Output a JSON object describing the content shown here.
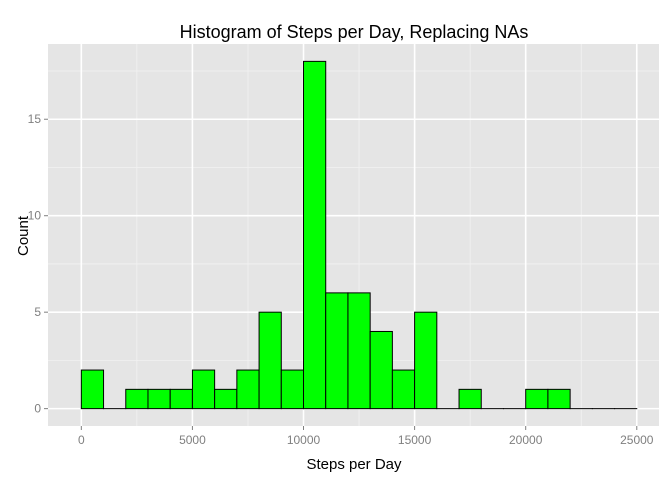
{
  "chart_data": {
    "type": "bar",
    "title": "Histogram of Steps per Day, Replacing NAs",
    "xlabel": "Steps per Day",
    "ylabel": "Count",
    "bin_width": 1000,
    "bins": [
      {
        "x_start": 0,
        "x_end": 1000,
        "count": 2
      },
      {
        "x_start": 1000,
        "x_end": 2000,
        "count": 0
      },
      {
        "x_start": 2000,
        "x_end": 3000,
        "count": 1
      },
      {
        "x_start": 3000,
        "x_end": 4000,
        "count": 1
      },
      {
        "x_start": 4000,
        "x_end": 5000,
        "count": 1
      },
      {
        "x_start": 5000,
        "x_end": 6000,
        "count": 2
      },
      {
        "x_start": 6000,
        "x_end": 7000,
        "count": 1
      },
      {
        "x_start": 7000,
        "x_end": 8000,
        "count": 2
      },
      {
        "x_start": 8000,
        "x_end": 9000,
        "count": 5
      },
      {
        "x_start": 9000,
        "x_end": 10000,
        "count": 2
      },
      {
        "x_start": 10000,
        "x_end": 11000,
        "count": 18
      },
      {
        "x_start": 11000,
        "x_end": 12000,
        "count": 6
      },
      {
        "x_start": 12000,
        "x_end": 13000,
        "count": 6
      },
      {
        "x_start": 13000,
        "x_end": 14000,
        "count": 4
      },
      {
        "x_start": 14000,
        "x_end": 15000,
        "count": 2
      },
      {
        "x_start": 15000,
        "x_end": 16000,
        "count": 5
      },
      {
        "x_start": 16000,
        "x_end": 17000,
        "count": 0
      },
      {
        "x_start": 17000,
        "x_end": 18000,
        "count": 1
      },
      {
        "x_start": 18000,
        "x_end": 19000,
        "count": 0
      },
      {
        "x_start": 19000,
        "x_end": 20000,
        "count": 0
      },
      {
        "x_start": 20000,
        "x_end": 21000,
        "count": 1
      },
      {
        "x_start": 21000,
        "x_end": 22000,
        "count": 1
      },
      {
        "x_start": 22000,
        "x_end": 23000,
        "count": 0
      },
      {
        "x_start": 23000,
        "x_end": 24000,
        "count": 0
      },
      {
        "x_start": 24000,
        "x_end": 25000,
        "count": 0
      }
    ],
    "xlim": [
      -1500,
      26000
    ],
    "ylim": [
      -0.9,
      18.9
    ],
    "x_ticks": [
      0,
      5000,
      10000,
      15000,
      20000,
      25000
    ],
    "y_ticks": [
      0,
      5,
      10,
      15
    ],
    "grid": true,
    "colors": {
      "bar_fill": "#00ff00",
      "bar_stroke": "#000000",
      "panel_background": "#e5e5e5",
      "grid_major": "#ffffff",
      "grid_minor": "#f2f2f2"
    }
  }
}
